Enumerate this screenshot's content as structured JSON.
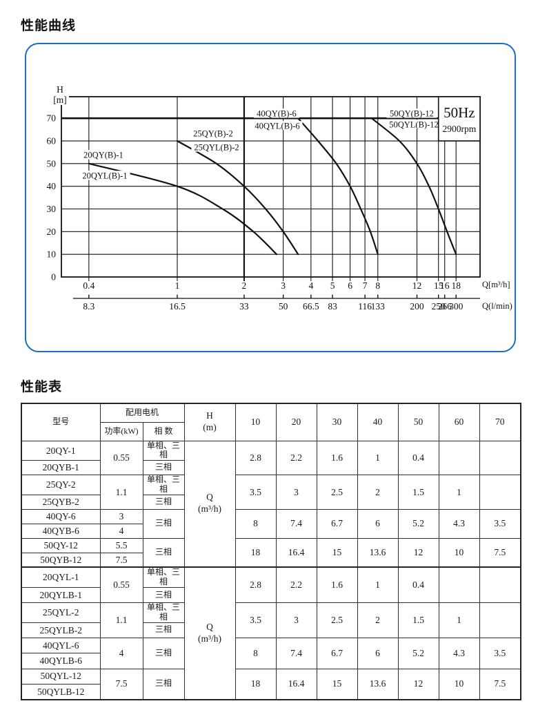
{
  "page": {
    "curves_title": "性能曲线",
    "table_title": "性能表"
  },
  "chart_data": {
    "type": "line",
    "title": "性能曲线",
    "corner_box": {
      "line1": "50Hz",
      "line2": "2900rpm"
    },
    "y_axis": {
      "unit_line1": "H",
      "unit_line2": "[m]",
      "ticks": [
        0,
        10,
        20,
        30,
        40,
        50,
        60,
        70
      ],
      "range": [
        0,
        79
      ]
    },
    "x_axis_primary": {
      "unit": "Q[m³/h]",
      "scale": "log",
      "ticks": [
        0.4,
        1,
        2,
        3,
        4,
        5,
        6,
        7,
        8,
        12,
        15,
        16,
        18
      ]
    },
    "x_axis_secondary": {
      "unit": "Q(l/min)",
      "ticks": [
        {
          "at": 0.4,
          "label": "8.3"
        },
        {
          "at": 1,
          "label": "16.5"
        },
        {
          "at": 2,
          "label": "33"
        },
        {
          "at": 3,
          "label": "50"
        },
        {
          "at": 4,
          "label": "66.5"
        },
        {
          "at": 5,
          "label": "83"
        },
        {
          "at": 7,
          "label": "116"
        },
        {
          "at": 8,
          "label": "133"
        },
        {
          "at": 12,
          "label": "200"
        },
        {
          "at": 15,
          "label": "250"
        },
        {
          "at": 16,
          "label": "266"
        },
        {
          "at": 18,
          "label": "300"
        }
      ]
    },
    "series": [
      {
        "labels": [
          "20QY(B)-1",
          "20QYL(B)-1"
        ],
        "label_anchors": [
          [
            149,
            223
          ],
          [
            151,
            253
          ]
        ],
        "points": [
          [
            0.4,
            50
          ],
          [
            1,
            40
          ],
          [
            1.6,
            30
          ],
          [
            2.2,
            20
          ],
          [
            2.8,
            10
          ]
        ]
      },
      {
        "labels": [
          "25QY(B)-2",
          "25QYL(B)-2"
        ],
        "label_anchors": [
          [
            308,
            192
          ],
          [
            313,
            212
          ]
        ],
        "points": [
          [
            1,
            60
          ],
          [
            1.5,
            50
          ],
          [
            2,
            40
          ],
          [
            2.5,
            30
          ],
          [
            3,
            20
          ],
          [
            3.5,
            10
          ]
        ]
      },
      {
        "labels": [
          "40QY(B)-6",
          "40QYL(B)-6"
        ],
        "label_anchors": [
          [
            400,
            163
          ],
          [
            401,
            181
          ]
        ],
        "points": [
          [
            3.5,
            70
          ],
          [
            4.3,
            60
          ],
          [
            5.2,
            50
          ],
          [
            6,
            40
          ],
          [
            6.7,
            30
          ],
          [
            7.4,
            20
          ],
          [
            8,
            10
          ]
        ]
      },
      {
        "labels": [
          "50QY(B)-12",
          "50QYL(B)-12"
        ],
        "label_anchors": [
          [
            596,
            163
          ],
          [
            599,
            179
          ]
        ],
        "points": [
          [
            7.5,
            70
          ],
          [
            10,
            60
          ],
          [
            12,
            50
          ],
          [
            13.6,
            40
          ],
          [
            15,
            30
          ],
          [
            16.4,
            20
          ],
          [
            18,
            10
          ]
        ]
      }
    ]
  },
  "perf_table": {
    "header": {
      "model": "型号",
      "motor_group": "配用电机",
      "power": "功率(kW)",
      "phases": "相 数",
      "head_line1": "H",
      "head_line2": "(m)",
      "head_values": [
        "10",
        "20",
        "30",
        "40",
        "50",
        "60",
        "70"
      ]
    },
    "flow_unit": {
      "line1": "Q",
      "line2": "(m³/h)"
    },
    "sections": [
      {
        "groups": [
          {
            "models": [
              "20QY-1",
              "20QYB-1"
            ],
            "powers": [
              "0.55"
            ],
            "phases": [
              "单相、三相",
              "三相"
            ],
            "values": [
              "2.8",
              "2.2",
              "1.6",
              "1",
              "0.4",
              "",
              ""
            ]
          },
          {
            "models": [
              "25QY-2",
              "25QYB-2"
            ],
            "powers": [
              "1.1"
            ],
            "phases": [
              "单相、三相",
              "三相"
            ],
            "values": [
              "3.5",
              "3",
              "2.5",
              "2",
              "1.5",
              "1",
              ""
            ]
          },
          {
            "models": [
              "40QY-6",
              "40QYB-6"
            ],
            "powers": [
              "3",
              "4"
            ],
            "phases": [
              "三相"
            ],
            "values": [
              "8",
              "7.4",
              "6.7",
              "6",
              "5.2",
              "4.3",
              "3.5"
            ]
          },
          {
            "models": [
              "50QY-12",
              "50QYB-12"
            ],
            "powers": [
              "5.5",
              "7.5"
            ],
            "phases": [
              "三相"
            ],
            "values": [
              "18",
              "16.4",
              "15",
              "13.6",
              "12",
              "10",
              "7.5"
            ]
          }
        ]
      },
      {
        "groups": [
          {
            "models": [
              "20QYL-1",
              "20QYLB-1"
            ],
            "powers": [
              "0.55"
            ],
            "phases": [
              "单相、三相",
              "三相"
            ],
            "values": [
              "2.8",
              "2.2",
              "1.6",
              "1",
              "0.4",
              "",
              ""
            ]
          },
          {
            "models": [
              "25QYL-2",
              "25QYLB-2"
            ],
            "powers": [
              "1.1"
            ],
            "phases": [
              "单相、三相",
              "三相"
            ],
            "values": [
              "3.5",
              "3",
              "2.5",
              "2",
              "1.5",
              "1",
              ""
            ]
          },
          {
            "models": [
              "40QYL-6",
              "40QYLB-6"
            ],
            "powers": [
              "4"
            ],
            "phases": [
              "三相"
            ],
            "values": [
              "8",
              "7.4",
              "6.7",
              "6",
              "5.2",
              "4.3",
              "3.5"
            ]
          },
          {
            "models": [
              "50QYL-12",
              "50QYLB-12"
            ],
            "powers": [
              "7.5"
            ],
            "phases": [
              "三相"
            ],
            "values": [
              "18",
              "16.4",
              "15",
              "13.6",
              "12",
              "10",
              "7.5"
            ]
          }
        ]
      }
    ]
  }
}
